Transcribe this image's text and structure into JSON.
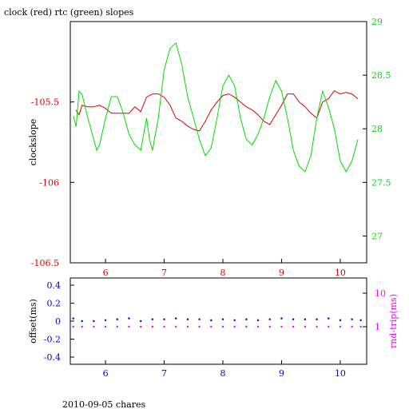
{
  "header": {
    "title": "clock (red) rtc (green) slopes",
    "footer": "2010-09-05 chares"
  },
  "colors": {
    "clock": "#dd0000",
    "rtc": "#00dd00",
    "offset": "#0000cc",
    "rndtrip": "#ff00ff",
    "axis": "#000000"
  },
  "chart_data": [
    {
      "type": "line",
      "title": "clock (red) rtc (green) slopes",
      "xlabel": "",
      "ylabel": "clockslope",
      "y2label": "",
      "xlim": [
        5.4,
        10.45
      ],
      "ylim": [
        -106.5,
        -105.0
      ],
      "y2lim": [
        26.75,
        29.0
      ],
      "x_ticks": [
        "6",
        "7",
        "8",
        "9",
        "10"
      ],
      "y_ticks": [
        "-105.5",
        "-106",
        "-106.5"
      ],
      "y2_ticks": [
        "29",
        "28.5",
        "28",
        "27.5",
        "27"
      ],
      "grid": false,
      "series": [
        {
          "name": "clock",
          "axis": "left",
          "x": [
            5.5,
            5.55,
            5.6,
            5.7,
            5.8,
            5.9,
            6.0,
            6.1,
            6.2,
            6.3,
            6.4,
            6.5,
            6.6,
            6.7,
            6.8,
            6.9,
            7.0,
            7.1,
            7.2,
            7.3,
            7.4,
            7.5,
            7.6,
            7.7,
            7.8,
            7.9,
            8.0,
            8.1,
            8.2,
            8.3,
            8.4,
            8.5,
            8.6,
            8.7,
            8.8,
            8.9,
            9.0,
            9.1,
            9.2,
            9.3,
            9.4,
            9.5,
            9.6,
            9.7,
            9.8,
            9.9,
            10.0,
            10.1,
            10.2,
            10.3
          ],
          "y": [
            -105.55,
            -105.58,
            -105.52,
            -105.53,
            -105.53,
            -105.52,
            -105.54,
            -105.57,
            -105.57,
            -105.57,
            -105.57,
            -105.53,
            -105.56,
            -105.47,
            -105.45,
            -105.45,
            -105.47,
            -105.52,
            -105.6,
            -105.62,
            -105.65,
            -105.67,
            -105.68,
            -105.62,
            -105.55,
            -105.5,
            -105.46,
            -105.45,
            -105.47,
            -105.5,
            -105.53,
            -105.55,
            -105.58,
            -105.62,
            -105.64,
            -105.58,
            -105.52,
            -105.45,
            -105.45,
            -105.5,
            -105.53,
            -105.57,
            -105.6,
            -105.5,
            -105.48,
            -105.43,
            -105.45,
            -105.44,
            -105.45,
            -105.48
          ]
        },
        {
          "name": "rtc",
          "axis": "right",
          "x": [
            5.45,
            5.5,
            5.55,
            5.6,
            5.7,
            5.8,
            5.85,
            5.9,
            6.0,
            6.1,
            6.2,
            6.3,
            6.4,
            6.5,
            6.6,
            6.7,
            6.75,
            6.8,
            6.9,
            7.0,
            7.1,
            7.2,
            7.3,
            7.4,
            7.5,
            7.6,
            7.7,
            7.8,
            7.9,
            8.0,
            8.1,
            8.2,
            8.3,
            8.4,
            8.5,
            8.6,
            8.7,
            8.8,
            8.9,
            9.0,
            9.1,
            9.2,
            9.3,
            9.4,
            9.5,
            9.6,
            9.7,
            9.8,
            9.9,
            10.0,
            10.1,
            10.2,
            10.3
          ],
          "y": [
            28.12,
            28.02,
            28.35,
            28.32,
            28.1,
            27.9,
            27.8,
            27.85,
            28.1,
            28.3,
            28.3,
            28.15,
            27.95,
            27.85,
            27.8,
            28.1,
            27.9,
            27.8,
            28.1,
            28.55,
            28.75,
            28.8,
            28.6,
            28.3,
            28.1,
            27.9,
            27.75,
            27.82,
            28.1,
            28.4,
            28.5,
            28.4,
            28.1,
            27.9,
            27.85,
            27.95,
            28.1,
            28.3,
            28.45,
            28.35,
            28.1,
            27.8,
            27.65,
            27.6,
            27.75,
            28.1,
            28.35,
            28.2,
            28.0,
            27.7,
            27.6,
            27.7,
            27.9
          ]
        }
      ]
    },
    {
      "type": "scatter",
      "title": "",
      "xlabel": "",
      "ylabel": "offset(ms)",
      "y2label": "rnd-trip(ms)",
      "xlim": [
        5.4,
        10.45
      ],
      "ylim": [
        -0.48,
        0.48
      ],
      "y2_log": true,
      "x_ticks": [
        "6",
        "7",
        "8",
        "9",
        "10"
      ],
      "y_ticks": [
        "0.4",
        "0.2",
        "0",
        "-0.2",
        "-0.4"
      ],
      "y2_ticks": [
        "10",
        "1"
      ],
      "grid": false,
      "series": [
        {
          "name": "offset",
          "axis": "left",
          "x": [
            5.45,
            5.6,
            5.8,
            6.0,
            6.2,
            6.4,
            6.6,
            6.8,
            7.0,
            7.2,
            7.4,
            7.6,
            7.8,
            8.0,
            8.2,
            8.4,
            8.6,
            8.8,
            9.0,
            9.2,
            9.4,
            9.6,
            9.8,
            10.0,
            10.2,
            10.35
          ],
          "y": [
            0.03,
            0.0,
            0.0,
            0.01,
            0.02,
            0.03,
            0.0,
            0.02,
            0.02,
            0.03,
            0.02,
            0.02,
            0.01,
            0.02,
            0.01,
            0.02,
            0.01,
            0.02,
            0.03,
            0.02,
            0.02,
            0.02,
            0.03,
            0.01,
            0.02,
            0.01
          ]
        },
        {
          "name": "rnd-trip",
          "axis": "right",
          "x": [
            5.45,
            5.6,
            5.8,
            6.0,
            6.2,
            6.4,
            6.6,
            6.8,
            7.0,
            7.2,
            7.4,
            7.6,
            7.8,
            8.0,
            8.2,
            8.4,
            8.6,
            8.8,
            9.0,
            9.2,
            9.4,
            9.6,
            9.8,
            10.0,
            10.2,
            10.35
          ],
          "y": [
            1.05,
            1.05,
            1.05,
            1.05,
            1.05,
            1.05,
            1.05,
            1.05,
            1.05,
            1.05,
            1.05,
            1.05,
            1.05,
            1.05,
            1.05,
            1.05,
            1.05,
            1.05,
            1.05,
            1.05,
            1.05,
            1.05,
            1.05,
            1.05,
            1.05,
            1.05
          ]
        }
      ]
    }
  ]
}
